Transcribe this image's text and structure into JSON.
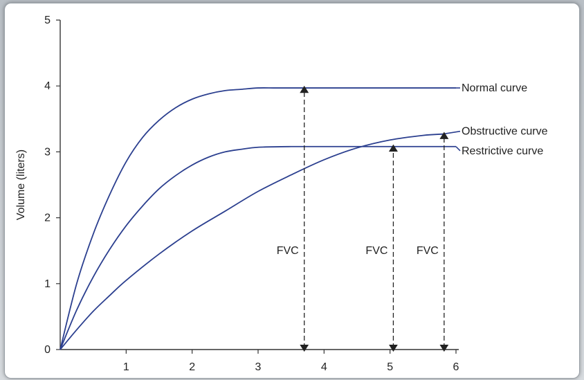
{
  "chart_data": {
    "type": "line",
    "title": "",
    "xlabel": "",
    "ylabel": "Volume (liters)",
    "xlim": [
      0,
      6
    ],
    "ylim": [
      0,
      5
    ],
    "x_ticks": [
      "1",
      "2",
      "3",
      "4",
      "5",
      "6"
    ],
    "y_ticks": [
      "0",
      "1",
      "2",
      "3",
      "4",
      "5"
    ],
    "grid": false,
    "series_color": "#2b3f8f",
    "series": [
      {
        "name": "Normal curve",
        "x": [
          0,
          0.25,
          0.5,
          0.75,
          1,
          1.25,
          1.5,
          1.75,
          2,
          2.25,
          2.5,
          2.75,
          3,
          3.25,
          3.5,
          4,
          4.5,
          5,
          5.5,
          6
        ],
        "y": [
          0,
          1.0,
          1.75,
          2.35,
          2.85,
          3.22,
          3.48,
          3.67,
          3.8,
          3.88,
          3.93,
          3.95,
          3.97,
          3.97,
          3.97,
          3.97,
          3.97,
          3.97,
          3.97,
          3.97
        ]
      },
      {
        "name": "Obstructive curve",
        "x": [
          0,
          0.25,
          0.5,
          0.75,
          1,
          1.5,
          2,
          2.5,
          3,
          3.5,
          4,
          4.5,
          5,
          5.5,
          5.8
        ],
        "y": [
          0,
          0.3,
          0.58,
          0.82,
          1.05,
          1.45,
          1.8,
          2.1,
          2.4,
          2.65,
          2.88,
          3.06,
          3.18,
          3.25,
          3.27
        ]
      },
      {
        "name": "Restrictive curve",
        "x": [
          0,
          0.25,
          0.5,
          0.75,
          1,
          1.25,
          1.5,
          1.75,
          2,
          2.25,
          2.5,
          2.75,
          3,
          3.5,
          4,
          4.5,
          5,
          5.5,
          6
        ],
        "y": [
          0,
          0.6,
          1.1,
          1.52,
          1.88,
          2.18,
          2.44,
          2.64,
          2.8,
          2.92,
          3.0,
          3.04,
          3.07,
          3.08,
          3.08,
          3.08,
          3.08,
          3.08,
          3.08
        ]
      }
    ],
    "annotations": [
      {
        "label": "FVC",
        "x": 3.7,
        "y_top": 3.97
      },
      {
        "label": "FVC",
        "x": 5.05,
        "y_top": 3.08
      },
      {
        "label": "FVC",
        "x": 5.82,
        "y_top": 3.27
      }
    ]
  }
}
